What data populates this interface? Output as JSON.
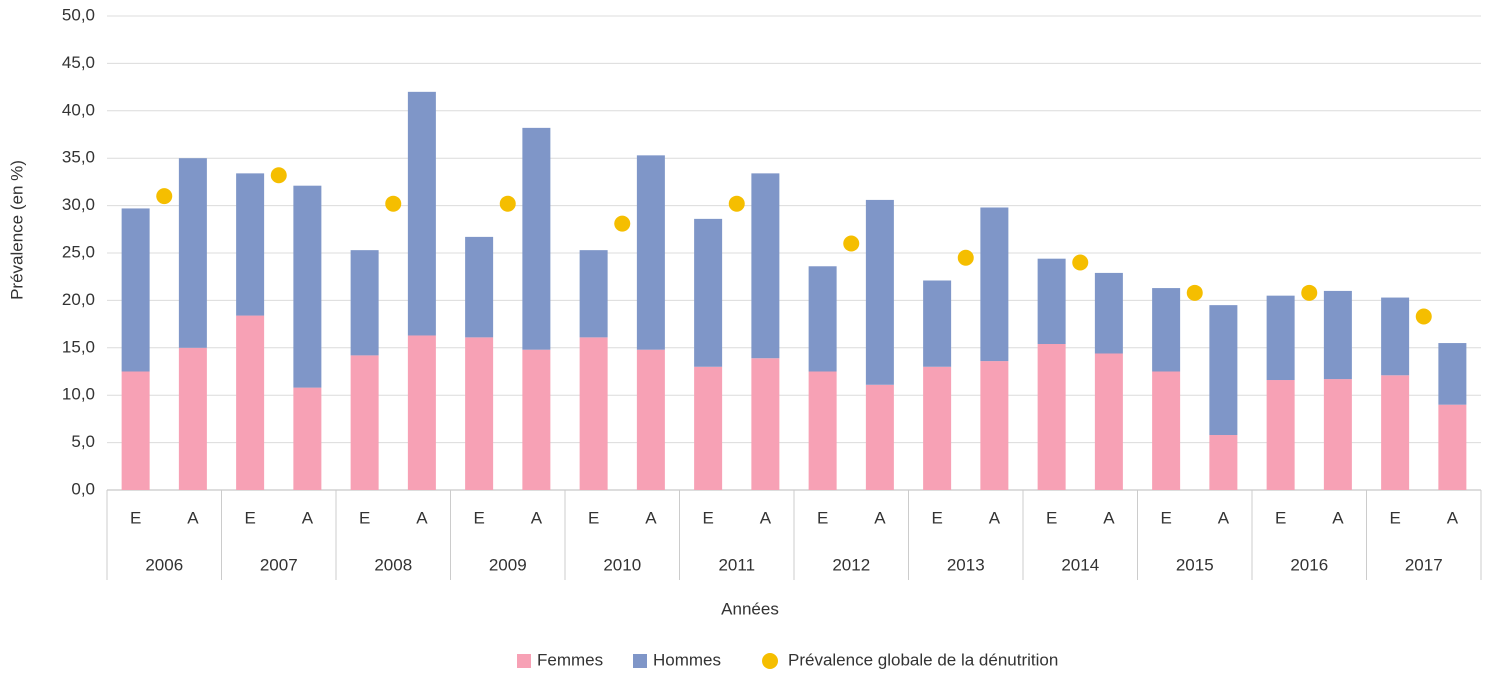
{
  "chart_data": {
    "type": "bar",
    "stacked": true,
    "y_label": "Prévalence (en %)",
    "x_label": "Années",
    "categories": [
      "E",
      "A",
      "E",
      "A",
      "E",
      "A",
      "E",
      "A",
      "E",
      "A",
      "E",
      "A",
      "E",
      "A",
      "E",
      "A",
      "E",
      "A",
      "E",
      "A",
      "E",
      "A",
      "E",
      "A"
    ],
    "groups": [
      "2006",
      "2007",
      "2008",
      "2009",
      "2010",
      "2011",
      "2012",
      "2013",
      "2014",
      "2015",
      "2016",
      "2017"
    ],
    "series": [
      {
        "name": "Femmes",
        "color": "#f7a1b5",
        "values": [
          12.5,
          15.0,
          18.4,
          10.8,
          14.2,
          16.3,
          16.1,
          14.8,
          16.1,
          14.8,
          13.0,
          13.9,
          12.5,
          11.1,
          13.0,
          13.6,
          15.4,
          14.4,
          12.5,
          5.8,
          11.6,
          11.7,
          12.1,
          9.0
        ]
      },
      {
        "name": "Hommes",
        "color": "#7f96c8",
        "values": [
          17.2,
          20.0,
          15.0,
          21.3,
          11.1,
          25.7,
          10.6,
          23.4,
          9.2,
          20.5,
          15.6,
          19.5,
          11.1,
          19.5,
          9.1,
          16.2,
          9.0,
          8.5,
          8.8,
          13.7,
          8.9,
          9.3,
          8.2,
          6.5
        ]
      },
      {
        "name": "Prévalence globale de la dénutrition",
        "color": "#f5be00",
        "type": "scatter",
        "values": [
          31.0,
          33.2,
          30.2,
          30.2,
          28.1,
          30.2,
          26.0,
          24.5,
          24.0,
          20.8,
          20.8,
          18.3
        ]
      }
    ],
    "ylim": [
      0,
      50
    ],
    "yticks": [
      {
        "value": 0,
        "label": "0,0"
      },
      {
        "value": 5,
        "label": "5,0"
      },
      {
        "value": 10,
        "label": "10,0"
      },
      {
        "value": 15,
        "label": "15,0"
      },
      {
        "value": 20,
        "label": "20,0"
      },
      {
        "value": 25,
        "label": "25,0"
      },
      {
        "value": 30,
        "label": "30,0"
      },
      {
        "value": 35,
        "label": "35,0"
      },
      {
        "value": 40,
        "label": "40,0"
      },
      {
        "value": 45,
        "label": "45,0"
      },
      {
        "value": 50,
        "label": "50,0"
      }
    ],
    "grid": true
  }
}
